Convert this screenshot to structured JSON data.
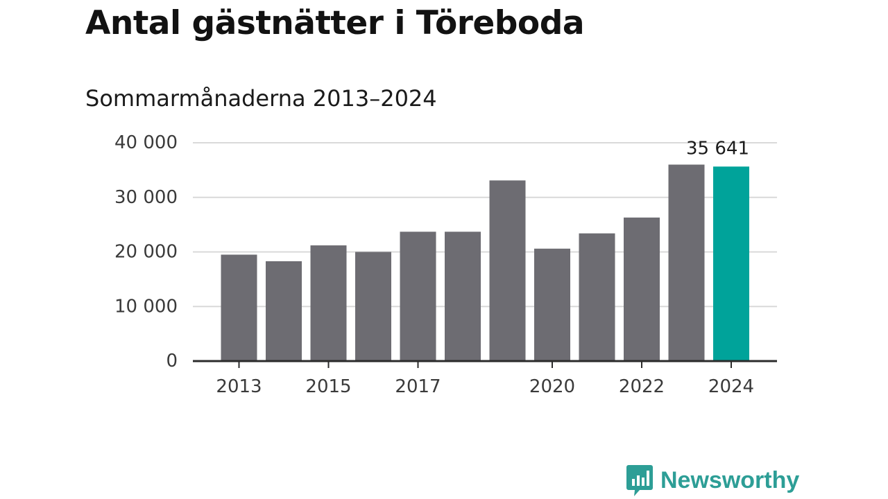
{
  "chart_data": {
    "type": "bar",
    "title": "Antal gästnätter i Töreboda",
    "subtitle": "Sommarmånaderna 2013–2024",
    "categories": [
      "2013",
      "2014",
      "2015",
      "2016",
      "2017",
      "2018",
      "2019",
      "2020",
      "2021",
      "2022",
      "2023",
      "2024"
    ],
    "values": [
      19500,
      18300,
      21200,
      20000,
      23700,
      23700,
      33100,
      20600,
      23400,
      26300,
      36000,
      35641
    ],
    "x_tick_labels": [
      "2013",
      "",
      "2015",
      "",
      "2017",
      "",
      "",
      "2020",
      "",
      "2022",
      "",
      "2024"
    ],
    "y_ticks": [
      0,
      10000,
      20000,
      30000,
      40000
    ],
    "y_tick_labels": [
      "0",
      "10 000",
      "20 000",
      "30 000",
      "40 000"
    ],
    "ylim": [
      0,
      40000
    ],
    "xlabel": "",
    "ylabel": "",
    "grid": true,
    "highlight_index": 11,
    "highlight_label": "35 641",
    "colors": {
      "bar": "#6d6c72",
      "highlight": "#00a39a",
      "grid": "#d9d9d9",
      "axis": "#2b2b2b"
    }
  },
  "brand": {
    "name": "Newsworthy",
    "logo": "newsworthy-chart-logo",
    "color": "#2d9e96"
  }
}
